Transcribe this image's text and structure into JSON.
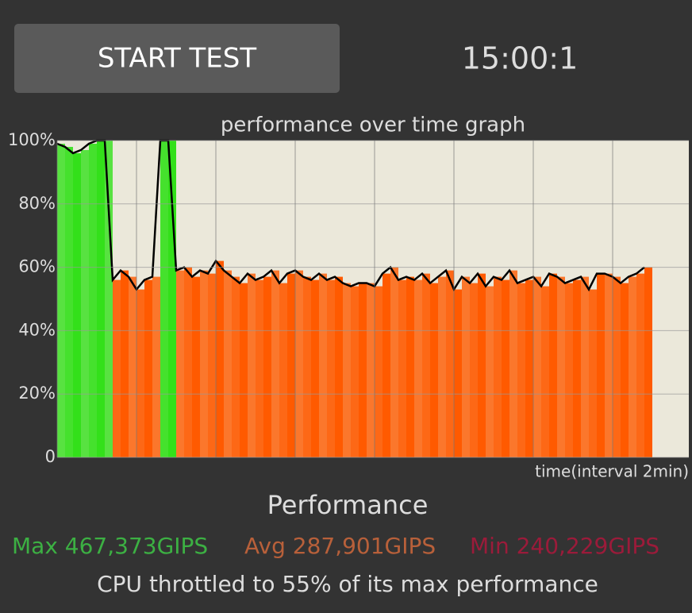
{
  "button": "START TEST",
  "timer": "15:00:1",
  "chart_data": {
    "type": "area",
    "title": "performance over time graph",
    "x_label": "time(interval 2min)",
    "x": [
      0,
      0.2,
      0.4,
      0.6,
      0.8,
      1.0,
      1.2,
      1.4,
      1.6,
      1.8,
      2.0,
      2.2,
      2.4,
      2.6,
      2.8,
      3.0,
      3.2,
      3.4,
      3.6,
      3.8,
      4.0,
      4.2,
      4.4,
      4.6,
      4.8,
      5.0,
      5.2,
      5.4,
      5.6,
      5.8,
      6.0,
      6.2,
      6.4,
      6.6,
      6.8,
      7.0,
      7.2,
      7.4,
      7.6,
      7.8,
      8.0,
      8.2,
      8.4,
      8.6,
      8.8,
      9.0,
      9.2,
      9.4,
      9.6,
      9.8,
      10.0,
      10.2,
      10.4,
      10.6,
      10.8,
      11.0,
      11.2,
      11.4,
      11.6,
      11.8,
      12.0,
      12.2,
      12.4,
      12.6,
      12.8,
      13.0,
      13.2,
      13.4,
      13.6,
      13.8,
      14.0,
      14.2,
      14.4,
      14.6,
      14.8
    ],
    "values": [
      99,
      98,
      96,
      97,
      99,
      100,
      100,
      56,
      59,
      57,
      53,
      56,
      57,
      100,
      100,
      59,
      60,
      57,
      59,
      58,
      62,
      59,
      57,
      55,
      58,
      56,
      57,
      59,
      55,
      58,
      59,
      57,
      56,
      58,
      56,
      57,
      55,
      54,
      55,
      55,
      54,
      58,
      60,
      56,
      57,
      56,
      58,
      55,
      57,
      59,
      53,
      57,
      55,
      58,
      54,
      57,
      56,
      59,
      55,
      56,
      57,
      54,
      58,
      57,
      55,
      56,
      57,
      53,
      58,
      58,
      57,
      55,
      57,
      58,
      60
    ],
    "xlim": [
      0,
      15.92
    ],
    "xgrid": [
      0,
      2,
      4,
      6,
      8,
      10,
      12,
      14
    ],
    "ylim": [
      0,
      100
    ],
    "yticks": [
      0,
      {
        "value": 20,
        "label": "20%"
      },
      {
        "value": 40,
        "label": "40%"
      },
      {
        "value": 60,
        "label": "60%"
      },
      {
        "value": 80,
        "label": "80%"
      },
      {
        "value": 100,
        "label": "100%"
      }
    ],
    "grid": true,
    "high_color": "#33e01a",
    "low_color": "#ff5a00",
    "line_color": "#000000"
  },
  "summary": {
    "heading": "Performance",
    "max": "Max 467,373GIPS",
    "avg": "Avg 287,901GIPS",
    "min": "Min 240,229GIPS",
    "note": "CPU throttled to 55% of its max performance"
  }
}
